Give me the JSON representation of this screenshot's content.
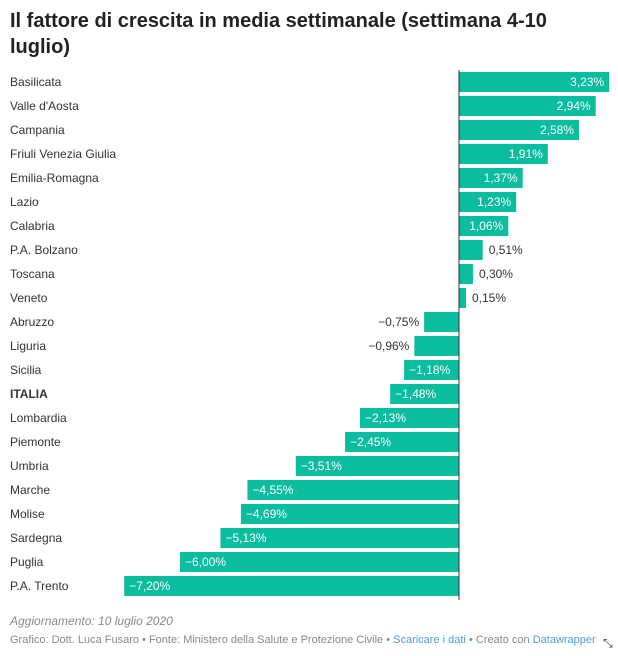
{
  "title": "Il fattore di crescita in media settimanale (settimana 4-10 luglio)",
  "chart_data": {
    "type": "bar",
    "orientation": "horizontal",
    "bar_color": "#0bbd9f",
    "categories": [
      "Basilicata",
      "Valle d'Aosta",
      "Campania",
      "Friuli Venezia Giulia",
      "Emilia-Romagna",
      "Lazio",
      "Calabria",
      "P.A. Bolzano",
      "Toscana",
      "Veneto",
      "Abruzzo",
      "Liguria",
      "Sicilia",
      "ITALIA",
      "Lombardia",
      "Piemonte",
      "Umbria",
      "Marche",
      "Molise",
      "Sardegna",
      "Puglia",
      "P.A. Trento"
    ],
    "values": [
      3.23,
      2.94,
      2.58,
      1.91,
      1.37,
      1.23,
      1.06,
      0.51,
      0.3,
      0.15,
      -0.75,
      -0.96,
      -1.18,
      -1.48,
      -2.13,
      -2.45,
      -3.51,
      -4.55,
      -4.69,
      -5.13,
      -6.0,
      -7.2
    ],
    "labels": [
      "3,23%",
      "2,94%",
      "2,58%",
      "1,91%",
      "1,37%",
      "1,23%",
      "1,06%",
      "0,51%",
      "0,30%",
      "0,15%",
      "−0,75%",
      "−0,96%",
      "−1,18%",
      "−1,48%",
      "−2,13%",
      "−2,45%",
      "−3,51%",
      "−4,55%",
      "−4,69%",
      "−5,13%",
      "−6,00%",
      "−7,20%"
    ],
    "bold_category": "ITALIA"
  },
  "footer": {
    "note": "Aggiornamento: 10 luglio 2020",
    "credits_prefix": "Grafico: Dott. Luca Fusaro • Fonte: Ministero della Salute e Protezione Civile • ",
    "download_link": "Scaricare i dati",
    "created_with": " • Creato con ",
    "datawrapper_link": "Datawrapper"
  }
}
